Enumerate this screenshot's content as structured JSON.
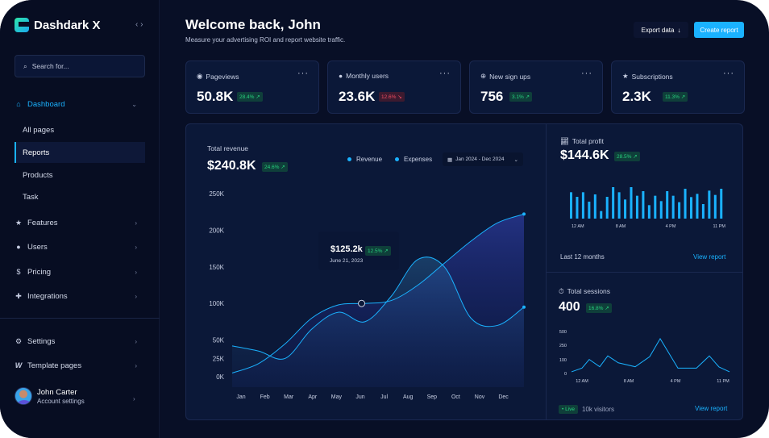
{
  "app": {
    "name": "Dashdark X",
    "collapse_icon": "‹ ›"
  },
  "search": {
    "placeholder": "Search for..."
  },
  "sidebar": {
    "dashboard": "Dashboard",
    "sub_items": [
      "All pages",
      "Reports",
      "Products",
      "Task"
    ],
    "items": [
      "Features",
      "Users",
      "Pricing",
      "Integrations"
    ],
    "bottom": [
      "Settings",
      "Template pages"
    ],
    "accent": "#1ab2ff"
  },
  "user": {
    "name": "John Carter",
    "subtitle": "Account settings"
  },
  "header": {
    "title": "Welcome back, John",
    "subtitle": "Measure your advertising ROI and report website traffic.",
    "export_label": "Export data",
    "create_label": "Create report"
  },
  "stats": [
    {
      "label": "Pageviews",
      "value": "50.8K",
      "change": "28.4% ↗",
      "trend": "up",
      "icon": "eye-icon"
    },
    {
      "label": "Monthly users",
      "value": "23.6K",
      "change": "12.6% ↘",
      "trend": "down",
      "icon": "user-icon"
    },
    {
      "label": "New sign ups",
      "value": "756",
      "change": "3.1% ↗",
      "trend": "up",
      "icon": "plus-circle-icon"
    },
    {
      "label": "Subscriptions",
      "value": "2.3K",
      "change": "11.3% ↗",
      "trend": "up",
      "icon": "star-icon"
    }
  ],
  "revenue": {
    "title": "Total revenue",
    "value": "$240.8K",
    "change": "24.6% ↗",
    "legend": [
      "Revenue",
      "Expenses"
    ],
    "date_range": "Jan 2024 - Dec 2024",
    "tooltip": {
      "value": "$125.2k",
      "change": "12.5% ↗",
      "date": "June 21, 2023"
    }
  },
  "profit": {
    "title": "Total profit",
    "value": "$144.6K",
    "change": "28.5% ↗",
    "footer": "Last 12 months",
    "link": "View report"
  },
  "sessions": {
    "title": "Total sessions",
    "value": "400",
    "change": "16.8% ↗",
    "live": "• Live",
    "visitors": "10k visitors",
    "link": "View report"
  },
  "chart_data": [
    {
      "type": "area",
      "categories": [
        "Jan",
        "Feb",
        "Mar",
        "Apr",
        "May",
        "Jun",
        "Jul",
        "Aug",
        "Sep",
        "Oct",
        "Nov",
        "Dec"
      ],
      "yticks": [
        "0K",
        "25K",
        "50K",
        "100K",
        "150K",
        "200K",
        "250K"
      ],
      "ylim": [
        0,
        250
      ],
      "series": [
        {
          "name": "Revenue",
          "values": [
            5,
            18,
            45,
            80,
            98,
            100,
            104,
            125,
            155,
            185,
            210,
            222
          ]
        },
        {
          "name": "Expenses",
          "values": [
            42,
            35,
            25,
            65,
            88,
            75,
            110,
            160,
            150,
            80,
            70,
            95
          ]
        }
      ]
    },
    {
      "type": "bar",
      "xticks": [
        "12 AM",
        "8 AM",
        "4 PM",
        "11 PM"
      ],
      "values": [
        98,
        81,
        98,
        63,
        90,
        28,
        81,
        117,
        98,
        71,
        117,
        85,
        102,
        50,
        85,
        65,
        102,
        85,
        61,
        111,
        80,
        92,
        54,
        104,
        88,
        111
      ]
    },
    {
      "type": "line",
      "yticks": [
        "0",
        "100",
        "250",
        "500"
      ],
      "xticks": [
        "12 AM",
        "8 AM",
        "4 PM",
        "11 PM"
      ],
      "values": [
        12,
        39,
        103,
        49,
        140,
        78,
        49,
        132,
        370,
        39,
        39,
        140,
        47,
        12
      ]
    }
  ]
}
